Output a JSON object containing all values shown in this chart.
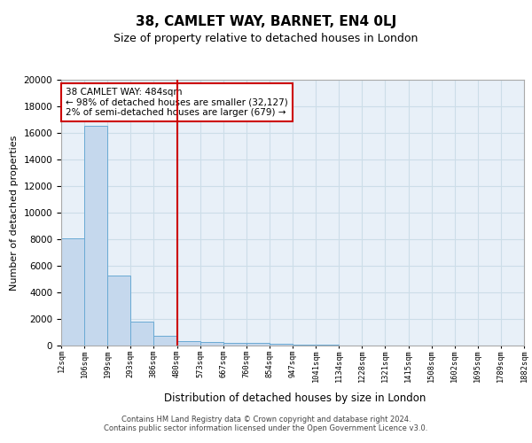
{
  "title1": "38, CAMLET WAY, BARNET, EN4 0LJ",
  "title2": "Size of property relative to detached houses in London",
  "xlabel": "Distribution of detached houses by size in London",
  "ylabel": "Number of detached properties",
  "bin_labels": [
    "12sqm",
    "106sqm",
    "199sqm",
    "293sqm",
    "386sqm",
    "480sqm",
    "573sqm",
    "667sqm",
    "760sqm",
    "854sqm",
    "947sqm",
    "1041sqm",
    "1134sqm",
    "1228sqm",
    "1321sqm",
    "1415sqm",
    "1508sqm",
    "1602sqm",
    "1695sqm",
    "1789sqm",
    "1882sqm"
  ],
  "bar_heights": [
    8100,
    16500,
    5300,
    1800,
    750,
    350,
    270,
    220,
    200,
    120,
    60,
    35,
    22,
    15,
    10,
    7,
    5,
    3,
    2,
    1
  ],
  "bar_color": "#c5d8ed",
  "bar_edge_color": "#6aaad4",
  "property_line_color": "#cc0000",
  "annotation_text": "38 CAMLET WAY: 484sqm\n← 98% of detached houses are smaller (32,127)\n2% of semi-detached houses are larger (679) →",
  "annotation_box_color": "#ffffff",
  "annotation_box_edge": "#cc0000",
  "ylim": [
    0,
    20000
  ],
  "yticks": [
    0,
    2000,
    4000,
    6000,
    8000,
    10000,
    12000,
    14000,
    16000,
    18000,
    20000
  ],
  "grid_color": "#ccdde8",
  "bg_color": "#e8f0f8",
  "footer1": "Contains HM Land Registry data © Crown copyright and database right 2024.",
  "footer2": "Contains public sector information licensed under the Open Government Licence v3.0."
}
